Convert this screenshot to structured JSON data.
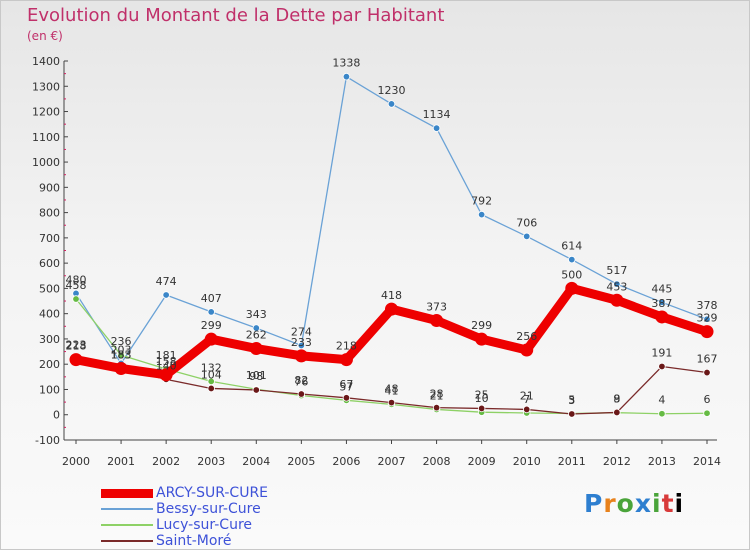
{
  "header": {
    "title": "Evolution du Montant de la Dette par Habitant",
    "unit": "(en €)"
  },
  "logo": {
    "letters": [
      "P",
      "r",
      "o",
      "x",
      "i",
      "t",
      "i"
    ],
    "text": "Proxiti"
  },
  "chart_data": {
    "type": "line",
    "title": "Evolution du Montant de la Dette par Habitant",
    "ylabel": "(en €)",
    "xlabel": "",
    "ylim": [
      -100,
      1400
    ],
    "yticks": [
      -100,
      0,
      100,
      200,
      300,
      400,
      500,
      600,
      700,
      800,
      900,
      1000,
      1100,
      1200,
      1300,
      1400
    ],
    "grid": false,
    "legend_position": "bottom-left",
    "x": [
      "2000",
      "2001",
      "2002",
      "2003",
      "2004",
      "2005",
      "2006",
      "2007",
      "2008",
      "2009",
      "2010",
      "2011",
      "2012",
      "2013",
      "2014"
    ],
    "series": [
      {
        "name": "ARCY-SUR-CURE",
        "color": "#ee0000",
        "marker_color": "#ee0000",
        "width": 9,
        "values": [
          218,
          183,
          158,
          299,
          262,
          233,
          218,
          418,
          373,
          299,
          256,
          500,
          453,
          387,
          329
        ],
        "labels": [
          "218",
          "183",
          "158",
          "299",
          "262",
          "233",
          "218",
          "418",
          "373",
          "299",
          "256",
          "500",
          "453",
          "387",
          "329"
        ]
      },
      {
        "name": "Bessy-sur-Cure",
        "color": "#6aa2d6",
        "marker_color": "#3a86c8",
        "width": 1.3,
        "values": [
          480,
          203,
          474,
          407,
          343,
          274,
          1338,
          1230,
          1134,
          792,
          706,
          614,
          517,
          445,
          378
        ],
        "labels": [
          "480",
          "203",
          "474",
          "407",
          "343",
          "274",
          "1338",
          "1230",
          "1134",
          "792",
          "706",
          "614",
          "517",
          "445",
          "378"
        ]
      },
      {
        "name": "Lucy-sur-Cure",
        "color": "#8ed166",
        "marker_color": "#66bb44",
        "width": 1.3,
        "values": [
          458,
          236,
          181,
          132,
          101,
          76,
          57,
          41,
          21,
          10,
          7,
          5,
          8,
          4,
          6
        ],
        "labels": [
          "458",
          "236",
          "181",
          "132",
          "101",
          "76",
          "57",
          "41",
          "21",
          "10",
          "7",
          "5",
          "8",
          "4",
          "6"
        ]
      },
      {
        "name": "Saint-Moré",
        "color": "#7a2a2a",
        "marker_color": "#6a1818",
        "width": 1.3,
        "values": [
          223,
          183,
          140,
          104,
          98,
          82,
          67,
          48,
          28,
          25,
          21,
          3,
          9,
          191,
          167
        ],
        "labels": [
          "223",
          "183",
          "140",
          "104",
          "98",
          "82",
          "67",
          "48",
          "28",
          "25",
          "21",
          "3",
          "9",
          "191",
          "167"
        ]
      }
    ]
  }
}
